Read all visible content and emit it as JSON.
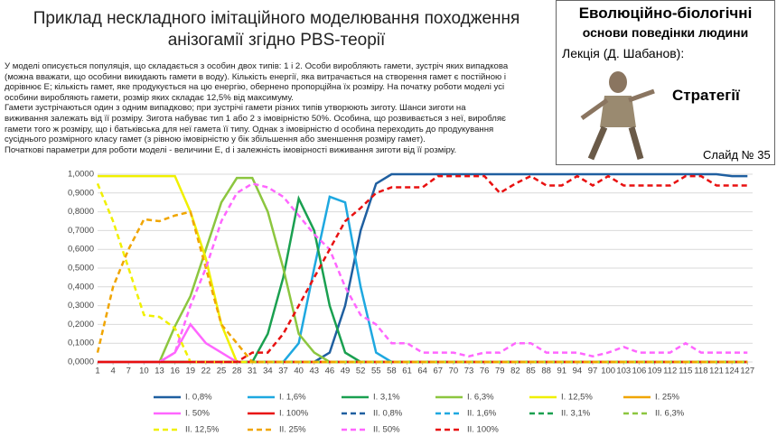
{
  "header": {
    "title_lines": [
      "Приклад нескладного імітаційного моделювання походження",
      "анізогамії згідно PBS-теорії"
    ],
    "description": [
      "У моделі описується популяція, що складається з особин двох типів: 1 і 2. Особи виробляють гамети, зустріч яких випадкова",
      "(можна вважати, що особини викидають гамети в воду). Кількість енергії, яка витрачається на створення гамет є постійною і",
      "дорівнює E; кількість гамет, яке продукується на  цю енергію, обернено пропорційна їх розміру. На початку роботи моделі усі",
      "особини виробляють гамети, розмір яких складає 12,5% від максимуму.",
      "Гамети зустрічаються один з одним випадково; при зустрічі гамети різних типів утворюють зиготу. Шанси зиготи на",
      "виживання залежать від її розміру. Зигота набуває тип 1 або 2 з імовірністю 50%. Особина, що розвивається з неї, виробляє",
      "гамети того ж розміру, що і батьківська для неї гамета її типу. Однак з імовірністю d особина переходить до продукування",
      "сусіднього розмірного класу гамет (з рівною імовірністю у бік збільшення або зменшення розміру гамет).",
      "Початкові параметри для роботи моделі - величини E, d і залежність імовірності виживання зиготи від її розміру."
    ]
  },
  "panel": {
    "title": "Еволюційно-біологічні",
    "subtitle": "основи поведінки людини",
    "lecture": "Лекція (Д. Шабанов):",
    "topic": "Стратегії",
    "slide": "Слайд № 35"
  },
  "chart_data": {
    "type": "line",
    "grid": true,
    "x": [
      1,
      4,
      7,
      10,
      13,
      16,
      19,
      22,
      25,
      28,
      31,
      34,
      37,
      40,
      43,
      46,
      49,
      52,
      55,
      58,
      61,
      64,
      67,
      70,
      73,
      76,
      79,
      82,
      85,
      88,
      91,
      94,
      97,
      100,
      103,
      106,
      109,
      112,
      115,
      118,
      121,
      124,
      127
    ],
    "xlim": [
      1,
      128
    ],
    "xticks": [
      1,
      4,
      7,
      10,
      13,
      16,
      19,
      22,
      25,
      28,
      31,
      34,
      37,
      40,
      43,
      46,
      49,
      52,
      55,
      58,
      61,
      64,
      67,
      70,
      73,
      76,
      79,
      82,
      85,
      88,
      91,
      94,
      97,
      100,
      103,
      106,
      109,
      112,
      115,
      118,
      121,
      124,
      127
    ],
    "ylim": [
      0,
      1
    ],
    "yticks": [
      {
        "value": 0,
        "label": "0,0000"
      },
      {
        "value": 0.1,
        "label": "0,1000"
      },
      {
        "value": 0.2,
        "label": "0,2000"
      },
      {
        "value": 0.3,
        "label": "0,3000"
      },
      {
        "value": 0.4,
        "label": "0,4000"
      },
      {
        "value": 0.5,
        "label": "0,5000"
      },
      {
        "value": 0.6,
        "label": "0,6000"
      },
      {
        "value": 0.7,
        "label": "0,7000"
      },
      {
        "value": 0.8,
        "label": "0,8000"
      },
      {
        "value": 0.9,
        "label": "0,9000"
      },
      {
        "value": 1,
        "label": "1,0000"
      }
    ],
    "series": [
      {
        "name": "I. 0,8%",
        "color": "#1f5fa0",
        "dash": false,
        "values": [
          0,
          0,
          0,
          0,
          0,
          0,
          0,
          0,
          0,
          0,
          0,
          0,
          0,
          0,
          0,
          0.05,
          0.3,
          0.7,
          0.95,
          1,
          1,
          1,
          1,
          1,
          1,
          1,
          1,
          1,
          1,
          1,
          1,
          1,
          1,
          1,
          1,
          1,
          1,
          1,
          1,
          1,
          1,
          0.99,
          0.99
        ]
      },
      {
        "name": "I. 1,6%",
        "color": "#1ea8e0",
        "dash": false,
        "values": [
          0,
          0,
          0,
          0,
          0,
          0,
          0,
          0,
          0,
          0,
          0,
          0,
          0,
          0.1,
          0.5,
          0.88,
          0.85,
          0.4,
          0.05,
          0,
          0,
          0,
          0,
          0,
          0,
          0,
          0,
          0,
          0,
          0,
          0,
          0,
          0,
          0,
          0,
          0,
          0,
          0,
          0,
          0,
          0,
          0,
          0
        ]
      },
      {
        "name": "I. 3,1%",
        "color": "#1aa050",
        "dash": false,
        "values": [
          0,
          0,
          0,
          0,
          0,
          0,
          0,
          0,
          0,
          0,
          0,
          0.15,
          0.45,
          0.87,
          0.7,
          0.3,
          0.05,
          0,
          0,
          0,
          0,
          0,
          0,
          0,
          0,
          0,
          0,
          0,
          0,
          0,
          0,
          0,
          0,
          0,
          0,
          0,
          0,
          0,
          0,
          0,
          0,
          0,
          0
        ]
      },
      {
        "name": "I. 6,3%",
        "color": "#8cc63f",
        "dash": false,
        "values": [
          0,
          0,
          0,
          0,
          0,
          0.19,
          0.35,
          0.6,
          0.85,
          0.98,
          0.98,
          0.8,
          0.5,
          0.15,
          0.05,
          0,
          0,
          0,
          0,
          0,
          0,
          0,
          0,
          0,
          0,
          0,
          0,
          0,
          0,
          0,
          0,
          0,
          0,
          0,
          0,
          0,
          0,
          0,
          0,
          0,
          0,
          0,
          0
        ]
      },
      {
        "name": "I. 12,5%",
        "color": "#f0f000",
        "dash": false,
        "values": [
          0.99,
          0.99,
          0.99,
          0.99,
          0.99,
          0.99,
          0.8,
          0.55,
          0.2,
          0,
          0,
          0,
          0,
          0,
          0,
          0,
          0,
          0,
          0,
          0,
          0,
          0,
          0,
          0,
          0,
          0,
          0,
          0,
          0,
          0,
          0,
          0,
          0,
          0,
          0,
          0,
          0,
          0,
          0,
          0,
          0,
          0,
          0
        ]
      },
      {
        "name": "I. 25%",
        "color": "#f0a500",
        "dash": false,
        "values": [
          0,
          0,
          0,
          0,
          0,
          0,
          0,
          0,
          0,
          0,
          0,
          0,
          0,
          0,
          0,
          0,
          0,
          0,
          0,
          0,
          0,
          0,
          0,
          0,
          0,
          0,
          0,
          0,
          0,
          0,
          0,
          0,
          0,
          0,
          0,
          0,
          0,
          0,
          0,
          0,
          0,
          0,
          0
        ]
      },
      {
        "name": "I. 50%",
        "color": "#ff66ff",
        "dash": false,
        "values": [
          0,
          0,
          0,
          0,
          0,
          0.05,
          0.2,
          0.1,
          0.05,
          0,
          0,
          0,
          0,
          0,
          0,
          0,
          0,
          0,
          0,
          0,
          0,
          0,
          0,
          0,
          0,
          0,
          0,
          0,
          0,
          0,
          0,
          0,
          0,
          0,
          0,
          0,
          0,
          0,
          0,
          0,
          0,
          0,
          0
        ]
      },
      {
        "name": "I. 100%",
        "color": "#e81010",
        "dash": false,
        "values": [
          0,
          0,
          0,
          0,
          0,
          0,
          0,
          0,
          0,
          0,
          0,
          0,
          0,
          0,
          0,
          0,
          0,
          0,
          0,
          0,
          0,
          0,
          0,
          0,
          0,
          0,
          0,
          0,
          0,
          0,
          0,
          0,
          0,
          0,
          0,
          0,
          0,
          0,
          0,
          0,
          0,
          0,
          0
        ]
      },
      {
        "name": "II. 0,8%",
        "color": "#1f5fa0",
        "dash": true,
        "values": [
          0,
          0,
          0,
          0,
          0,
          0,
          0,
          0,
          0,
          0,
          0,
          0,
          0,
          0,
          0,
          0,
          0,
          0,
          0,
          0,
          0,
          0,
          0,
          0,
          0,
          0,
          0,
          0,
          0,
          0,
          0,
          0,
          0,
          0,
          0,
          0,
          0,
          0,
          0,
          0,
          0,
          0,
          0
        ]
      },
      {
        "name": "II. 1,6%",
        "color": "#1ea8e0",
        "dash": true,
        "values": [
          0,
          0,
          0,
          0,
          0,
          0,
          0,
          0,
          0,
          0,
          0,
          0,
          0,
          0,
          0,
          0,
          0,
          0,
          0,
          0,
          0,
          0,
          0,
          0,
          0,
          0,
          0,
          0,
          0,
          0,
          0,
          0,
          0,
          0,
          0,
          0,
          0,
          0,
          0,
          0,
          0,
          0,
          0
        ]
      },
      {
        "name": "II. 3,1%",
        "color": "#1aa050",
        "dash": true,
        "values": [
          0,
          0,
          0,
          0,
          0,
          0,
          0,
          0,
          0,
          0,
          0,
          0,
          0,
          0,
          0,
          0,
          0,
          0,
          0,
          0,
          0,
          0,
          0,
          0,
          0,
          0,
          0,
          0,
          0,
          0,
          0,
          0,
          0,
          0,
          0,
          0,
          0,
          0,
          0,
          0,
          0,
          0,
          0
        ]
      },
      {
        "name": "II. 6,3%",
        "color": "#8cc63f",
        "dash": true,
        "values": [
          0,
          0,
          0,
          0,
          0,
          0,
          0,
          0,
          0,
          0,
          0,
          0,
          0,
          0,
          0,
          0,
          0,
          0,
          0,
          0,
          0,
          0,
          0,
          0,
          0,
          0,
          0,
          0,
          0,
          0,
          0,
          0,
          0,
          0,
          0,
          0,
          0,
          0,
          0,
          0,
          0,
          0,
          0
        ]
      },
      {
        "name": "II. 12,5%",
        "color": "#f0f000",
        "dash": true,
        "values": [
          0.95,
          0.75,
          0.5,
          0.25,
          0.24,
          0.18,
          0,
          0,
          0,
          0,
          0,
          0,
          0,
          0,
          0,
          0,
          0,
          0,
          0,
          0,
          0,
          0,
          0,
          0,
          0,
          0,
          0,
          0,
          0,
          0,
          0,
          0,
          0,
          0,
          0,
          0,
          0,
          0,
          0,
          0,
          0,
          0,
          0
        ]
      },
      {
        "name": "II. 25%",
        "color": "#f0a500",
        "dash": true,
        "values": [
          0.05,
          0.4,
          0.6,
          0.76,
          0.75,
          0.78,
          0.8,
          0.5,
          0.2,
          0.1,
          0,
          0,
          0,
          0,
          0,
          0,
          0,
          0,
          0,
          0,
          0,
          0,
          0,
          0,
          0,
          0,
          0,
          0,
          0,
          0,
          0,
          0,
          0,
          0,
          0,
          0,
          0,
          0,
          0,
          0,
          0,
          0,
          0
        ]
      },
      {
        "name": "II. 50%",
        "color": "#ff66ff",
        "dash": true,
        "values": [
          0,
          0,
          0,
          0,
          0,
          0.05,
          0.3,
          0.5,
          0.75,
          0.9,
          0.95,
          0.93,
          0.88,
          0.78,
          0.68,
          0.6,
          0.4,
          0.25,
          0.2,
          0.1,
          0.1,
          0.05,
          0.05,
          0.05,
          0.03,
          0.05,
          0.05,
          0.1,
          0.1,
          0.05,
          0.05,
          0.05,
          0.03,
          0.05,
          0.08,
          0.05,
          0.05,
          0.05,
          0.1,
          0.05,
          0.05,
          0.05,
          0.05
        ]
      },
      {
        "name": "II. 100%",
        "color": "#e81010",
        "dash": true,
        "values": [
          0,
          0,
          0,
          0,
          0,
          0,
          0,
          0,
          0,
          0,
          0.05,
          0.05,
          0.15,
          0.3,
          0.45,
          0.6,
          0.75,
          0.82,
          0.9,
          0.93,
          0.93,
          0.93,
          0.99,
          0.99,
          0.99,
          0.99,
          0.9,
          0.95,
          0.99,
          0.94,
          0.94,
          0.99,
          0.94,
          0.99,
          0.94,
          0.94,
          0.94,
          0.94,
          0.99,
          0.99,
          0.94,
          0.94,
          0.94
        ]
      }
    ]
  }
}
